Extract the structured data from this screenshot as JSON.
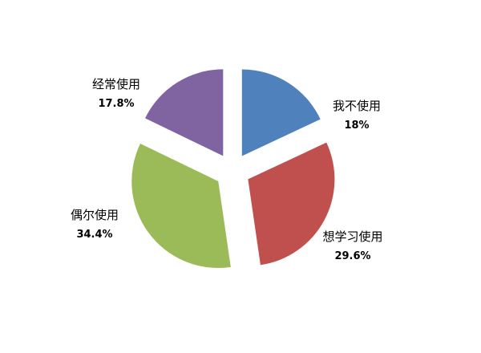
{
  "chart_data": {
    "type": "pie",
    "exploded": true,
    "start": "top",
    "direction": "clockwise",
    "slices": [
      {
        "label": "我不使用",
        "value": 18,
        "value_label": "18%",
        "color": "#4F81BD"
      },
      {
        "label": "想学习使用",
        "value": 29.6,
        "value_label": "29.6%",
        "color": "#C0504D"
      },
      {
        "label": "偶尔使用",
        "value": 34.4,
        "value_label": "34.4%",
        "color": "#9BBB59"
      },
      {
        "label": "经常使用",
        "value": 17.8,
        "value_label": "17.8%",
        "color": "#8064A2"
      }
    ]
  }
}
